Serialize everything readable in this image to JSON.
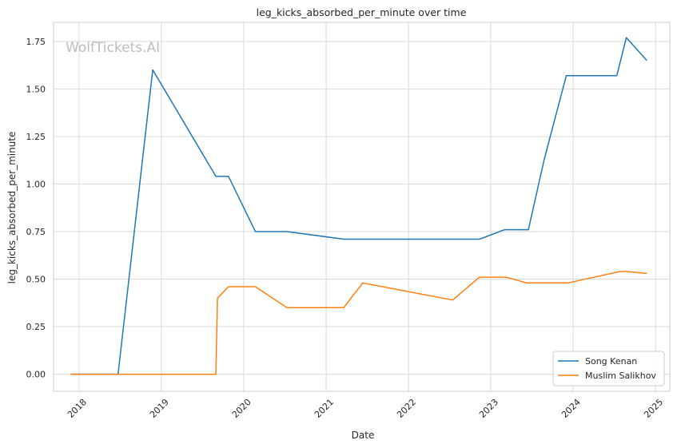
{
  "watermark": "WolfTickets.AI",
  "chart_data": {
    "type": "line",
    "title": "leg_kicks_absorbed_per_minute over time",
    "xlabel": "Date",
    "ylabel": "leg_kicks_absorbed_per_minute",
    "x_ticks": [
      "2018",
      "2019",
      "2020",
      "2021",
      "2022",
      "2023",
      "2024",
      "2025"
    ],
    "y_ticks": [
      "0.00",
      "0.25",
      "0.50",
      "0.75",
      "1.00",
      "1.25",
      "1.50",
      "1.75"
    ],
    "xlim": [
      "2017-09-10",
      "2025-03-05"
    ],
    "ylim": [
      -0.09,
      1.85
    ],
    "grid": true,
    "legend_position": "bottom-right",
    "series": [
      {
        "name": "Song Kenan",
        "color": "#1f77b4",
        "points": [
          {
            "x": "2017-11-25",
            "y": 0.0
          },
          {
            "x": "2018-06-23",
            "y": 0.0
          },
          {
            "x": "2018-11-24",
            "y": 1.6
          },
          {
            "x": "2019-08-31",
            "y": 1.04
          },
          {
            "x": "2019-10-26",
            "y": 1.04
          },
          {
            "x": "2020-02-22",
            "y": 0.75
          },
          {
            "x": "2020-07-11",
            "y": 0.75
          },
          {
            "x": "2021-03-20",
            "y": 0.71
          },
          {
            "x": "2022-11-12",
            "y": 0.71
          },
          {
            "x": "2023-03-04",
            "y": 0.76
          },
          {
            "x": "2023-06-17",
            "y": 0.76
          },
          {
            "x": "2023-08-26",
            "y": 1.13
          },
          {
            "x": "2023-12-02",
            "y": 1.57
          },
          {
            "x": "2024-07-13",
            "y": 1.57
          },
          {
            "x": "2024-08-24",
            "y": 1.77
          },
          {
            "x": "2024-11-23",
            "y": 1.65
          }
        ]
      },
      {
        "name": "Muslim Salikhov",
        "color": "#ff7f0e",
        "points": [
          {
            "x": "2017-11-25",
            "y": 0.0
          },
          {
            "x": "2019-08-31",
            "y": 0.0
          },
          {
            "x": "2019-09-07",
            "y": 0.4
          },
          {
            "x": "2019-10-26",
            "y": 0.46
          },
          {
            "x": "2020-02-22",
            "y": 0.46
          },
          {
            "x": "2020-07-11",
            "y": 0.35
          },
          {
            "x": "2021-03-20",
            "y": 0.35
          },
          {
            "x": "2021-06-12",
            "y": 0.48
          },
          {
            "x": "2022-07-16",
            "y": 0.39
          },
          {
            "x": "2022-11-12",
            "y": 0.51
          },
          {
            "x": "2023-03-11",
            "y": 0.51
          },
          {
            "x": "2023-06-10",
            "y": 0.48
          },
          {
            "x": "2023-12-09",
            "y": 0.48
          },
          {
            "x": "2024-07-27",
            "y": 0.54
          },
          {
            "x": "2024-08-24",
            "y": 0.54
          },
          {
            "x": "2024-11-23",
            "y": 0.53
          }
        ]
      }
    ]
  }
}
